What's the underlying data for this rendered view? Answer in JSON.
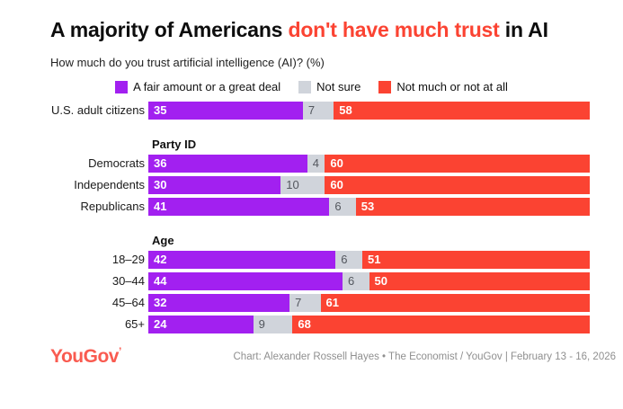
{
  "title": {
    "prefix": "A majority of Americans ",
    "highlight": "don't have much trust",
    "suffix": " in AI"
  },
  "subtitle": "How much do you trust artificial intelligence (AI)? (%)",
  "legend": {
    "items": [
      {
        "label": "A fair amount or a great deal"
      },
      {
        "label": "Not sure"
      },
      {
        "label": "Not much or not at all"
      }
    ]
  },
  "colors": {
    "trust": "#a220f0",
    "notsure": "#d0d4db",
    "nottrust": "#fb4332",
    "logo": "#f95b50"
  },
  "chart_data": {
    "type": "bar",
    "stacked": true,
    "orientation": "horizontal",
    "normalized_to_percent": true,
    "series_names": [
      "A fair amount or a great deal",
      "Not sure",
      "Not much or not at all"
    ],
    "groups": [
      {
        "header": "",
        "rows": [
          {
            "label": "U.S. adult citizens",
            "values": [
              35,
              7,
              58
            ]
          }
        ]
      },
      {
        "header": "Party ID",
        "rows": [
          {
            "label": "Democrats",
            "values": [
              36,
              4,
              60
            ]
          },
          {
            "label": "Independents",
            "values": [
              30,
              10,
              60
            ]
          },
          {
            "label": "Republicans",
            "values": [
              41,
              6,
              53
            ]
          }
        ]
      },
      {
        "header": "Age",
        "rows": [
          {
            "label": "18–29",
            "values": [
              42,
              6,
              51
            ]
          },
          {
            "label": "30–44",
            "values": [
              44,
              6,
              50
            ]
          },
          {
            "label": "45–64",
            "values": [
              32,
              7,
              61
            ]
          },
          {
            "label": "65+",
            "values": [
              24,
              9,
              68
            ]
          }
        ]
      }
    ]
  },
  "footer": {
    "logo_text": "YouGov",
    "logo_tick": "’",
    "credit": "Chart: Alexander Rossell Hayes • The Economist / YouGov | February 13 - 16, 2026"
  }
}
